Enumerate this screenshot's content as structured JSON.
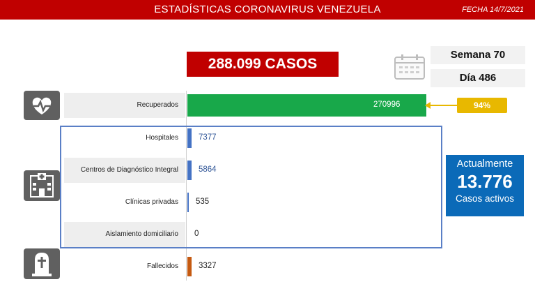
{
  "header": {
    "title": "ESTADÍSTICAS CORONAVIRUS VENEZUELA",
    "date": "FECHA 14/7/2021"
  },
  "total_cases": "288.099 CASOS",
  "week": "Semana 70",
  "day": "Día 486",
  "recovered_percent": "94%",
  "active": {
    "caption": "Actualmente",
    "value": "13.776",
    "footer": "Casos activos"
  },
  "colors": {
    "header": "#c00000",
    "recovered": "#18a84a",
    "hospital": "#4472c4",
    "deceased": "#c55a11",
    "active_box": "#0b6ab8",
    "percent_badge": "#e8b800"
  },
  "chart_data": {
    "type": "bar",
    "categories": [
      "Recuperados",
      "Hospitales",
      "Centros de Diagnóstico Integral",
      "Clínicas privadas",
      "Aislamiento domiciliario",
      "Fallecidos"
    ],
    "values": [
      270996,
      7377,
      5864,
      535,
      0,
      3327
    ],
    "value_labels": [
      "270996",
      "7377",
      "5864",
      "535",
      "0",
      "3327"
    ]
  }
}
